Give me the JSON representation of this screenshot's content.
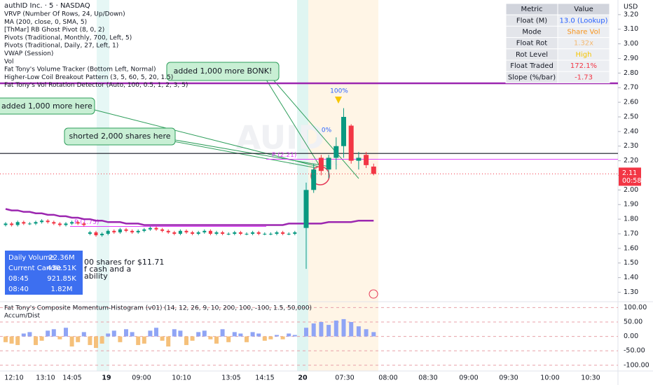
{
  "chart_data": [
    {
      "type": "candlestick",
      "title": "authID Inc. · 5 · NASDAQ",
      "watermark": "AUID",
      "watermark_sub": "authID Inc.",
      "currency": "USD",
      "up_color": "#089981",
      "down_color": "#f23645",
      "ma_color": "#9c27b0",
      "open": [
        1.76,
        1.77,
        1.76,
        1.78,
        1.77,
        1.77,
        1.78,
        1.79,
        1.78,
        1.77,
        1.76,
        1.77,
        1.78,
        1.77,
        1.7,
        1.71,
        1.69,
        1.7,
        1.72,
        1.71,
        1.73,
        1.72,
        1.71,
        1.72,
        1.73,
        1.74,
        1.73,
        1.72,
        1.71,
        1.7,
        1.72,
        1.71,
        1.7,
        1.71,
        1.72,
        1.7,
        1.71,
        1.7,
        1.7,
        1.71,
        1.7,
        1.7,
        1.71,
        1.7,
        1.7,
        1.7,
        1.71,
        1.7,
        1.7,
        1.74,
        2.0,
        2.22,
        2.14,
        2.22,
        2.3,
        2.44,
        2.2,
        2.24,
        2.16
      ],
      "high": [
        1.78,
        1.78,
        1.79,
        1.79,
        1.78,
        1.79,
        1.8,
        1.8,
        1.79,
        1.78,
        1.78,
        1.79,
        1.79,
        1.78,
        1.72,
        1.72,
        1.71,
        1.73,
        1.73,
        1.74,
        1.74,
        1.73,
        1.73,
        1.74,
        1.75,
        1.75,
        1.74,
        1.73,
        1.72,
        1.73,
        1.73,
        1.72,
        1.72,
        1.73,
        1.73,
        1.72,
        1.72,
        1.71,
        1.72,
        1.72,
        1.71,
        1.72,
        1.72,
        1.71,
        1.71,
        1.72,
        1.72,
        1.71,
        1.72,
        2.05,
        2.18,
        2.24,
        2.24,
        2.36,
        2.56,
        2.45,
        2.26,
        2.26,
        2.18
      ],
      "low": [
        1.75,
        1.75,
        1.75,
        1.76,
        1.76,
        1.76,
        1.77,
        1.77,
        1.76,
        1.75,
        1.75,
        1.76,
        1.76,
        1.75,
        1.69,
        1.68,
        1.68,
        1.69,
        1.7,
        1.7,
        1.71,
        1.7,
        1.7,
        1.71,
        1.72,
        1.72,
        1.71,
        1.7,
        1.69,
        1.69,
        1.7,
        1.69,
        1.69,
        1.7,
        1.69,
        1.69,
        1.69,
        1.69,
        1.69,
        1.69,
        1.69,
        1.69,
        1.69,
        1.69,
        1.69,
        1.69,
        1.69,
        1.69,
        1.69,
        1.46,
        1.98,
        2.1,
        2.08,
        2.14,
        2.22,
        2.18,
        2.14,
        2.15,
        2.1
      ],
      "close": [
        1.77,
        1.76,
        1.78,
        1.77,
        1.77,
        1.78,
        1.79,
        1.78,
        1.77,
        1.76,
        1.77,
        1.78,
        1.77,
        1.76,
        1.71,
        1.69,
        1.7,
        1.72,
        1.71,
        1.73,
        1.72,
        1.71,
        1.72,
        1.73,
        1.74,
        1.73,
        1.72,
        1.71,
        1.7,
        1.72,
        1.71,
        1.7,
        1.71,
        1.72,
        1.7,
        1.71,
        1.7,
        1.7,
        1.71,
        1.7,
        1.7,
        1.71,
        1.7,
        1.7,
        1.7,
        1.71,
        1.7,
        1.7,
        1.71,
        2.0,
        2.14,
        2.13,
        2.22,
        2.3,
        2.5,
        2.2,
        2.22,
        2.17,
        2.11
      ],
      "ma": [
        1.87,
        1.86,
        1.86,
        1.85,
        1.85,
        1.84,
        1.84,
        1.83,
        1.83,
        1.82,
        1.82,
        1.81,
        1.81,
        1.8,
        1.8,
        1.79,
        1.79,
        1.78,
        1.78,
        1.78,
        1.77,
        1.77,
        1.77,
        1.76,
        1.76,
        1.76,
        1.76,
        1.76,
        1.76,
        1.76,
        1.76,
        1.76,
        1.76,
        1.76,
        1.76,
        1.76,
        1.76,
        1.76,
        1.76,
        1.76,
        1.76,
        1.76,
        1.76,
        1.76,
        1.76,
        1.76,
        1.76,
        1.77,
        1.77,
        1.77,
        1.77,
        1.77,
        1.78,
        1.78,
        1.78,
        1.78,
        1.79,
        1.79,
        1.79
      ],
      "levels": [
        {
          "value": 2.73,
          "color": "#9c27b0"
        },
        {
          "value": 2.25,
          "color": "#131722"
        }
      ],
      "pivots": [
        {
          "label": "P (2.21)",
          "value": 2.21
        },
        {
          "label": "P (1.75)",
          "value": 1.75
        }
      ],
      "pivot_color": "#e040fb",
      "last_price": 2.11,
      "countdown": "00:58",
      "ylim": [
        1.24,
        3.3
      ],
      "yticks": [
        {
          "value": 3.2,
          "label": "3.20"
        },
        {
          "value": 3.1,
          "label": "3.10"
        },
        {
          "value": 3.0,
          "label": "3.00"
        },
        {
          "value": 2.9,
          "label": "2.90"
        },
        {
          "value": 2.8,
          "label": "2.80"
        },
        {
          "value": 2.7,
          "label": "2.70"
        },
        {
          "value": 2.6,
          "label": "2.60"
        },
        {
          "value": 2.5,
          "label": "2.50"
        },
        {
          "value": 2.4,
          "label": "2.40"
        },
        {
          "value": 2.3,
          "label": "2.30"
        },
        {
          "value": 2.2,
          "label": "2.20"
        },
        {
          "value": 2.1,
          "label": "2.10"
        },
        {
          "value": 2.0,
          "label": "2.00"
        },
        {
          "value": 1.9,
          "label": "1.90"
        },
        {
          "value": 1.8,
          "label": "1.80"
        },
        {
          "value": 1.7,
          "label": "1.70"
        },
        {
          "value": 1.6,
          "label": "1.60"
        },
        {
          "value": 1.5,
          "label": "1.50"
        },
        {
          "value": 1.4,
          "label": "1.40"
        },
        {
          "value": 1.3,
          "label": "1.30"
        }
      ]
    },
    {
      "type": "bar",
      "title": "Fat Tony's Composite Momentum-Histogram (v01) (14, 12, 26, 9, 10, 200, 100, -100, 1.5, 50,000)",
      "subtitle": "Accum/Dist",
      "positive_color": "#8fa4f5",
      "negative_color": "#f5c07a",
      "values": [
        -20,
        -25,
        -30,
        10,
        15,
        -30,
        -15,
        20,
        25,
        -10,
        30,
        -35,
        -20,
        15,
        -30,
        -40,
        -25,
        10,
        20,
        -20,
        25,
        15,
        -30,
        -25,
        20,
        30,
        -15,
        -35,
        25,
        20,
        -30,
        -15,
        15,
        20,
        -10,
        -25,
        25,
        -20,
        15,
        10,
        -20,
        15,
        10,
        -15,
        -10,
        5,
        -10,
        10,
        5,
        30,
        45,
        50,
        40,
        55,
        60,
        50,
        35,
        25,
        15
      ],
      "ylim": [
        -120,
        118
      ],
      "yticks": [
        {
          "value": 100,
          "label": "100.00"
        },
        {
          "value": 50,
          "label": "50.00"
        },
        {
          "value": 0,
          "label": "0.00"
        },
        {
          "value": -50,
          "label": "-50.00"
        },
        {
          "value": -100,
          "label": "-100.00"
        }
      ]
    }
  ],
  "legend": [
    "VRVP (Number Of Rows, 24, Up/Down)",
    "MA (200, close, 0, SMA, 5)",
    "[ThMar] RB Ghost Pivot (8, 0, 2)",
    "Pivots (Traditional, Monthly, 700, Left, 5)",
    "Pivots (Traditional, Daily, 27, Left, 1)",
    "VWAP (Session)",
    "Vol",
    "Fat Tony's Volume Tracker (Bottom Left, Normal)",
    "Higher-Low Coil Breakout Pattern (3, 5, 60, 5, 20, 1.5)",
    "Fat Tony's Vol Rotation Detector (Auto, 100, 0.5, 1, 2, 3, 5)"
  ],
  "time_axis": [
    "12:10",
    "13:10",
    "14:05",
    "19",
    "09:00",
    "10:10",
    "13:05",
    "14:15",
    "20",
    "07:30",
    "08:00",
    "08:30",
    "09:00",
    "09:30",
    "10:00",
    "10:30"
  ],
  "metrics_table": {
    "header": [
      "Metric",
      "Value"
    ],
    "rows": [
      [
        "Float (M)",
        "13.0 (Lookup)"
      ],
      [
        "Mode",
        "Share Vol"
      ],
      [
        "Float Rot",
        "1.32x"
      ],
      [
        "Rot Level",
        "High"
      ],
      [
        "Float Traded",
        "172.1%"
      ],
      [
        "Slope (%/bar)",
        "-1.73"
      ]
    ]
  },
  "info_box": {
    "rows": [
      [
        "Daily Volume",
        "22.36M"
      ],
      [
        "Current Candle",
        "430.51K"
      ],
      [
        "08:45",
        "921.85K"
      ],
      [
        "08:40",
        "1.82M"
      ]
    ]
  },
  "annotations": {
    "bonk": "added 1,000 more BONK!",
    "added": "added 1,000 more here",
    "shorted": "shorted 2,000 shares here",
    "peak": "100%",
    "partial": "0%"
  },
  "hidden_note": [
    "00 shares for $11.71",
    "f cash and a",
    "ability"
  ]
}
